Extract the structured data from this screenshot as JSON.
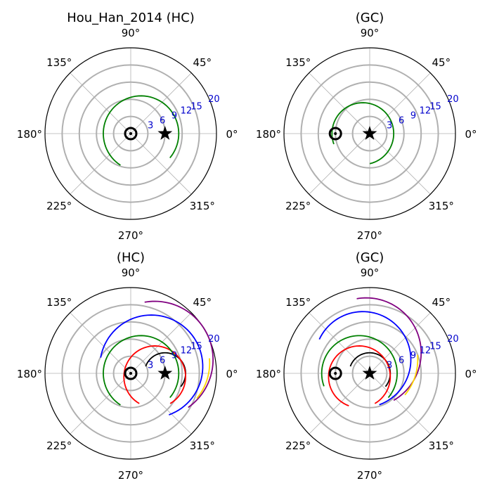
{
  "chart_data": [
    {
      "type": "polar",
      "title": "Hou_Han_2014 (HC)",
      "angle_tick_labels": [
        "0°",
        "45°",
        "90°",
        "135°",
        "180°",
        "225°",
        "270°",
        "315°"
      ],
      "radial_tick_labels": [
        "3",
        "6",
        "9",
        "12",
        "15",
        "20"
      ],
      "rmax": 25,
      "grid": true,
      "markers": {
        "sun": {
          "r": 0,
          "theta_deg": 0
        },
        "star": {
          "r": 10,
          "theta_deg": 0
        }
      },
      "series": [
        {
          "color": "#008000",
          "r": [
            11,
            11,
            11,
            11,
            11,
            11,
            11,
            11
          ],
          "theta_deg": [
            -40,
            0,
            40,
            80,
            120,
            160,
            200,
            237
          ],
          "center": [
            3,
            0
          ]
        }
      ]
    },
    {
      "type": "polar",
      "title": "(GC)",
      "angle_tick_labels": [
        "0°",
        "45°",
        "90°",
        "135°",
        "180°",
        "225°",
        "270°",
        "315°"
      ],
      "radial_tick_labels": [
        "3",
        "6",
        "9",
        "12",
        "15",
        "20"
      ],
      "rmax": 25,
      "grid": true,
      "markers": {
        "sun": {
          "r": 10,
          "theta_deg": 180
        },
        "star": {
          "r": 0,
          "theta_deg": 0
        }
      },
      "series": [
        {
          "color": "#008000",
          "r": [
            9,
            9,
            9,
            9,
            9,
            9,
            9,
            9
          ],
          "theta_deg": [
            -77,
            -40,
            0,
            40,
            80,
            120,
            160,
            200
          ],
          "center": [
            -2,
            0
          ]
        }
      ]
    },
    {
      "type": "polar",
      "title": "(HC)",
      "angle_tick_labels": [
        "0°",
        "45°",
        "90°",
        "135°",
        "180°",
        "225°",
        "270°",
        "315°"
      ],
      "radial_tick_labels": [
        "3",
        "6",
        "9",
        "12",
        "15",
        "20"
      ],
      "rmax": 25,
      "grid": true,
      "markers": {
        "sun": {
          "r": 0,
          "theta_deg": 0
        },
        "star": {
          "r": 10,
          "theta_deg": 0
        }
      },
      "series": [
        {
          "color": "#000000",
          "r": [
            6,
            6,
            6,
            6,
            6
          ],
          "theta_deg": [
            -40,
            10,
            60,
            110,
            160
          ],
          "center": [
            10,
            0
          ]
        },
        {
          "color": "#ff0000",
          "r": [
            9,
            9,
            9,
            9,
            9,
            9,
            9
          ],
          "theta_deg": [
            -60,
            -10,
            40,
            90,
            140,
            190,
            240
          ],
          "center": [
            7,
            -1
          ]
        },
        {
          "color": "#008000",
          "r": [
            11,
            11,
            11,
            11,
            11,
            11,
            11,
            11
          ],
          "theta_deg": [
            -40,
            0,
            40,
            80,
            120,
            160,
            200,
            237
          ],
          "center": [
            3,
            0
          ]
        },
        {
          "color": "#0000ff",
          "r": [
            15,
            15,
            15,
            15,
            15,
            15,
            15
          ],
          "theta_deg": [
            -70,
            -30,
            10,
            50,
            90,
            130,
            170
          ],
          "center": [
            6,
            2
          ]
        },
        {
          "color": "#800080",
          "r": [
            17,
            17,
            17,
            17,
            17,
            17
          ],
          "theta_deg": [
            -55,
            -20,
            15,
            50,
            85,
            100
          ],
          "center": [
            7,
            4
          ]
        },
        {
          "color": "#ffd700",
          "r": [
            16,
            16,
            16,
            16
          ],
          "theta_deg": [
            -40,
            -25,
            -10,
            5
          ],
          "center": [
            7,
            3
          ]
        }
      ]
    },
    {
      "type": "polar",
      "title": "(GC)",
      "angle_tick_labels": [
        "0°",
        "45°",
        "90°",
        "135°",
        "180°",
        "225°",
        "270°",
        "315°"
      ],
      "radial_tick_labels": [
        "3",
        "6",
        "9",
        "12",
        "15",
        "20"
      ],
      "rmax": 25,
      "grid": true,
      "markers": {
        "sun": {
          "r": 10,
          "theta_deg": 180
        },
        "star": {
          "r": 0,
          "theta_deg": 0
        }
      },
      "series": [
        {
          "color": "#000000",
          "r": [
            6,
            6,
            6,
            6,
            6
          ],
          "theta_deg": [
            -40,
            10,
            60,
            110,
            160
          ],
          "center": [
            0,
            0
          ]
        },
        {
          "color": "#ff0000",
          "r": [
            9,
            9,
            9,
            9,
            9,
            9,
            9
          ],
          "theta_deg": [
            -60,
            -10,
            40,
            90,
            140,
            190,
            250
          ],
          "center": [
            -3,
            -1
          ]
        },
        {
          "color": "#008000",
          "r": [
            11,
            11,
            11,
            11,
            11,
            11,
            11
          ],
          "theta_deg": [
            -40,
            0,
            40,
            80,
            120,
            160,
            200
          ],
          "center": [
            -3,
            0
          ]
        },
        {
          "color": "#0000ff",
          "r": [
            14,
            14,
            14,
            14,
            14,
            14,
            14
          ],
          "theta_deg": [
            -70,
            -30,
            10,
            50,
            90,
            130,
            155
          ],
          "center": [
            -2,
            4
          ]
        },
        {
          "color": "#800080",
          "r": [
            16,
            16,
            16,
            16,
            16
          ],
          "theta_deg": [
            -60,
            -20,
            20,
            60,
            100
          ],
          "center": [
            -1,
            6
          ]
        },
        {
          "color": "#ffd700",
          "r": [
            16,
            16,
            16,
            16
          ],
          "theta_deg": [
            -40,
            -25,
            -10,
            5
          ],
          "center": [
            -2,
            4
          ]
        }
      ]
    }
  ]
}
